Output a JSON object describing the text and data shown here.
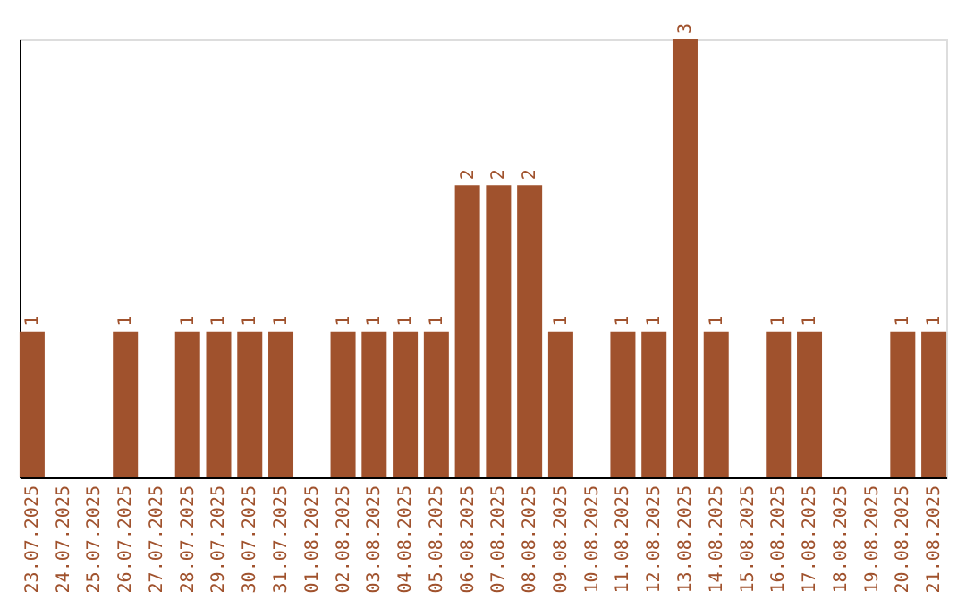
{
  "chart_data": {
    "type": "bar",
    "categories": [
      "23.07.2025",
      "24.07.2025",
      "25.07.2025",
      "26.07.2025",
      "27.07.2025",
      "28.07.2025",
      "29.07.2025",
      "30.07.2025",
      "31.07.2025",
      "01.08.2025",
      "02.08.2025",
      "03.08.2025",
      "04.08.2025",
      "05.08.2025",
      "06.08.2025",
      "07.08.2025",
      "08.08.2025",
      "09.08.2025",
      "10.08.2025",
      "11.08.2025",
      "12.08.2025",
      "13.08.2025",
      "14.08.2025",
      "15.08.2025",
      "16.08.2025",
      "17.08.2025",
      "18.08.2025",
      "19.08.2025",
      "20.08.2025",
      "21.08.2025"
    ],
    "values": [
      1,
      0,
      0,
      1,
      0,
      1,
      1,
      1,
      1,
      0,
      1,
      1,
      1,
      1,
      2,
      2,
      2,
      1,
      0,
      1,
      1,
      3,
      1,
      0,
      1,
      1,
      0,
      0,
      1,
      1
    ],
    "value_labels": [
      "1",
      null,
      null,
      "1",
      null,
      "1",
      "1",
      "1",
      "1",
      null,
      "1",
      "1",
      "1",
      "1",
      "2",
      "2",
      "2",
      "1",
      null,
      "1",
      "1",
      "3",
      "1",
      null,
      "1",
      "1",
      null,
      null,
      "1",
      "1"
    ],
    "color": "#a0522d",
    "tick_labels": "x",
    "grid": false
  }
}
